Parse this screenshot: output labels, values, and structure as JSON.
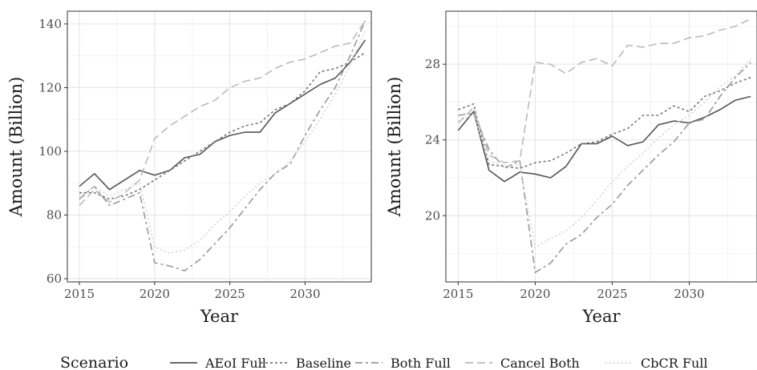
{
  "legend": {
    "title": "Scenario",
    "placement": "bottom"
  },
  "chart_data": [
    {
      "type": "line",
      "xlabel": "Year",
      "ylabel": "Amount (Billion)",
      "xlim": [
        2014.2,
        2034.4
      ],
      "ylim": [
        59,
        144
      ],
      "xticks": [
        2015,
        2020,
        2025,
        2030
      ],
      "yticks": [
        60,
        80,
        100,
        120,
        140
      ],
      "grid": true,
      "x": [
        2015,
        2016,
        2017,
        2018,
        2019,
        2020,
        2021,
        2022,
        2023,
        2024,
        2025,
        2026,
        2027,
        2028,
        2029,
        2030,
        2031,
        2032,
        2033,
        2034
      ],
      "series": [
        {
          "name": "AEoI Full",
          "values": [
            89,
            93,
            88,
            91,
            94,
            92.5,
            94,
            98,
            99,
            103,
            105,
            106,
            106,
            112,
            115,
            118,
            121,
            123,
            128,
            135
          ]
        },
        {
          "name": "Baseline",
          "values": [
            87,
            87,
            85,
            86,
            88,
            91,
            94,
            97,
            100,
            103,
            106,
            108,
            109,
            113,
            115,
            119,
            125,
            126,
            128,
            131
          ]
        },
        {
          "name": "Both Full",
          "values": [
            85,
            89,
            83,
            85,
            87,
            65,
            64,
            62.5,
            66,
            71,
            76,
            82,
            88,
            93,
            96,
            105,
            113,
            120,
            130,
            141
          ]
        },
        {
          "name": "Cancel Both",
          "values": [
            83,
            88,
            84,
            87,
            91,
            104,
            108,
            111,
            114,
            116,
            120,
            122,
            123,
            126,
            128,
            129,
            131,
            133,
            134,
            141
          ]
        },
        {
          "name": "CbCR Full",
          "values": [
            86,
            89,
            86,
            88,
            90,
            70,
            68,
            69,
            72,
            77,
            81,
            86,
            90,
            93,
            97,
            103,
            110,
            118,
            127,
            138
          ]
        }
      ]
    },
    {
      "type": "line",
      "xlabel": "Year",
      "ylabel": "Amount (Billion)",
      "xlim": [
        2014.2,
        2034.4
      ],
      "ylim": [
        16.5,
        30.8
      ],
      "xticks": [
        2015,
        2020,
        2025,
        2030
      ],
      "yticks": [
        20,
        24,
        28
      ],
      "grid": true,
      "x": [
        2015,
        2016,
        2017,
        2018,
        2019,
        2020,
        2021,
        2022,
        2023,
        2024,
        2025,
        2026,
        2027,
        2028,
        2029,
        2030,
        2031,
        2032,
        2033,
        2034
      ],
      "series": [
        {
          "name": "AEoI Full",
          "values": [
            24.5,
            25.5,
            22.4,
            21.8,
            22.3,
            22.2,
            22.0,
            22.6,
            23.8,
            23.8,
            24.2,
            23.7,
            23.9,
            24.8,
            25.0,
            24.9,
            25.2,
            25.6,
            26.1,
            26.3
          ]
        },
        {
          "name": "Baseline",
          "values": [
            25.6,
            25.9,
            22.7,
            22.6,
            22.5,
            22.8,
            22.9,
            23.3,
            23.8,
            23.9,
            24.3,
            24.6,
            25.3,
            25.3,
            25.8,
            25.5,
            26.3,
            26.6,
            27.0,
            27.3
          ]
        },
        {
          "name": "Both Full",
          "values": [
            25.3,
            25.4,
            23.5,
            22.5,
            22.9,
            17.0,
            17.5,
            18.5,
            19.0,
            19.9,
            20.6,
            21.6,
            22.4,
            23.2,
            23.9,
            24.9,
            25.1,
            26.3,
            27.3,
            28.1
          ]
        },
        {
          "name": "Cancel Both",
          "values": [
            24.9,
            25.7,
            23.2,
            22.8,
            22.9,
            28.1,
            28.0,
            27.5,
            28.1,
            28.3,
            27.9,
            29.0,
            28.9,
            29.1,
            29.1,
            29.4,
            29.5,
            29.8,
            30.0,
            30.4
          ]
        },
        {
          "name": "CbCR Full",
          "values": [
            25.0,
            25.3,
            22.9,
            22.6,
            22.7,
            18.3,
            18.8,
            19.2,
            19.9,
            20.8,
            21.8,
            22.6,
            23.3,
            24.1,
            24.8,
            25.3,
            26.0,
            26.8,
            27.4,
            28.3
          ]
        }
      ]
    }
  ]
}
